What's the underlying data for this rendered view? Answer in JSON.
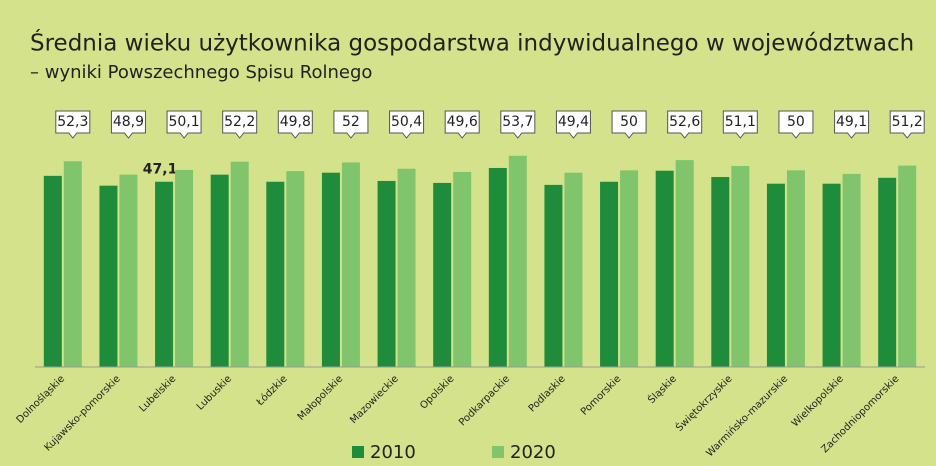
{
  "chart_data": {
    "type": "bar",
    "title": "Średnia wieku użytkownika gospodarstwa indywidualnego w województwach",
    "subtitle": "– wyniki Powszechnego Spisu Rolnego",
    "categories": [
      "Dolnośląskie",
      "Kujawsko-pomorskie",
      "Lubelskie",
      "Lubuskie",
      "Łódzkie",
      "Małopolskie",
      "Mazowieckie",
      "Opolskie",
      "Podkarpackie",
      "Podlaskie",
      "Pomorskie",
      "Śląskie",
      "Świętokrzyskie",
      "Warmińsko-mazurskie",
      "Wielkopolskie",
      "Zachodniopomorskie"
    ],
    "series": [
      {
        "name": "2010",
        "color": "#1e8c3a",
        "values": [
          48.6,
          46.1,
          47.1,
          48.9,
          47.1,
          49.4,
          47.3,
          46.8,
          50.6,
          46.3,
          47.1,
          49.9,
          48.3,
          46.6,
          46.6,
          48.1
        ],
        "value_labels": [
          null,
          null,
          "47,1",
          null,
          null,
          null,
          null,
          null,
          null,
          null,
          null,
          null,
          null,
          null,
          null,
          null
        ]
      },
      {
        "name": "2020",
        "color": "#80c46c",
        "values": [
          52.3,
          48.9,
          50.1,
          52.2,
          49.8,
          52,
          50.4,
          49.6,
          53.7,
          49.4,
          50,
          52.6,
          51.1,
          50,
          49.1,
          51.2
        ],
        "value_labels": [
          "52,3",
          "48,9",
          "50,1",
          "52,2",
          "49,8",
          "52",
          "50,4",
          "49,6",
          "53,7",
          "49,4",
          "50",
          "52,6",
          "51,1",
          "50",
          "49,1",
          "51,2"
        ]
      }
    ],
    "ylim": [
      0,
      60
    ]
  }
}
